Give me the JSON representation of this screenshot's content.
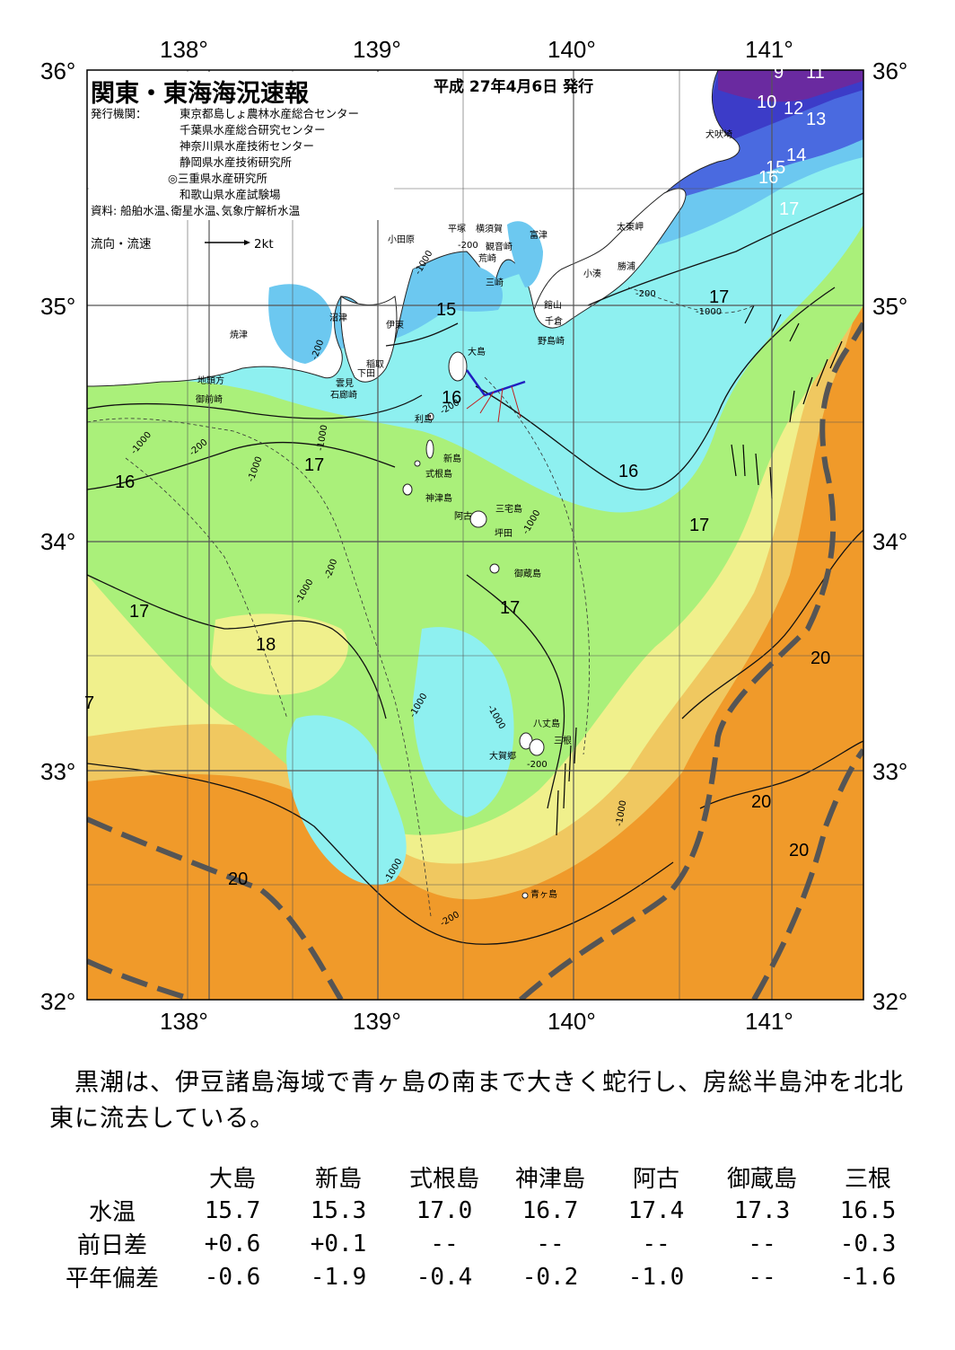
{
  "header": {
    "title": "関東・東海海況速報",
    "date": "平成 27年4月6日 発行",
    "issuer_label": "発行機関：",
    "issuers": [
      "東京都島しょ農林水産総合センター",
      "千葉県水産総合研究センター",
      "神奈川県水産技術センター",
      "静岡県水産技術研究所",
      "◎三重県水産研究所",
      "和歌山県水産試験場"
    ],
    "source": "資料: 船舶水温､衛星水温､気象庁解析水温",
    "flow_label": "流向・流速",
    "flow_scale": "2kt"
  },
  "axes": {
    "lon_labels": [
      "138°",
      "139°",
      "140°",
      "141°"
    ],
    "lat_labels": [
      "36°",
      "35°",
      "34°",
      "33°",
      "32°"
    ]
  },
  "map": {
    "isotherm_labels": [
      "9",
      "11",
      "10",
      "12",
      "13",
      "14",
      "15",
      "16",
      "17",
      "15",
      "16",
      "17",
      "17",
      "16",
      "16",
      "17",
      "17",
      "17",
      "18",
      "20",
      "7",
      "20",
      "20",
      "20"
    ],
    "depth_labels": [
      "-200",
      "-1000",
      "-200",
      "-1000",
      "-200",
      "-1000",
      "-200",
      "-1000",
      "-200",
      "-1000",
      "-1000",
      "-200",
      "-1000",
      "-1000",
      "-1000",
      "-1000",
      "-200",
      "-1000",
      "-200"
    ],
    "places": [
      "犬吠埼",
      "太東岬",
      "勝浦",
      "小湊",
      "富津",
      "観音崎",
      "横須賀",
      "荒崎",
      "平塚",
      "小田原",
      "三崎",
      "館山",
      "千倉",
      "野島崎",
      "沼津",
      "焼津",
      "伊東",
      "稲取",
      "下田",
      "雲見",
      "石廊崎",
      "地頭方",
      "御前崎",
      "大島",
      "利島",
      "新島",
      "式根島",
      "神津島",
      "三宅島",
      "阿古",
      "坪田",
      "御蔵島",
      "八丈島",
      "三根",
      "大賀郷",
      "青ヶ島"
    ],
    "palette": {
      "c14": "#3c3cc8",
      "c15": "#6cc8f0",
      "c16": "#8ef0f0",
      "c17": "#aaf07a",
      "c18": "#f0f08c",
      "c19": "#f0c860",
      "c20": "#f09a2a"
    }
  },
  "summary": "　黒潮は、伊豆諸島海域で青ヶ島の南まで大きく蛇行し、房総半島沖を北北東に流去している。",
  "table": {
    "columns": [
      "大島",
      "新島",
      "式根島",
      "神津島",
      "阿古",
      "御蔵島",
      "三根"
    ],
    "rows": [
      {
        "label": "水温",
        "values": [
          "15.7",
          "15.3",
          "17.0",
          "16.7",
          "17.4",
          "17.3",
          "16.5"
        ]
      },
      {
        "label": "前日差",
        "values": [
          "+0.6",
          "+0.1",
          "--",
          "--",
          "--",
          "--",
          "-0.3"
        ]
      },
      {
        "label": "平年偏差",
        "values": [
          "-0.6",
          "-1.9",
          "-0.4",
          "-0.2",
          "-1.0",
          "--",
          "-1.6"
        ]
      }
    ]
  }
}
